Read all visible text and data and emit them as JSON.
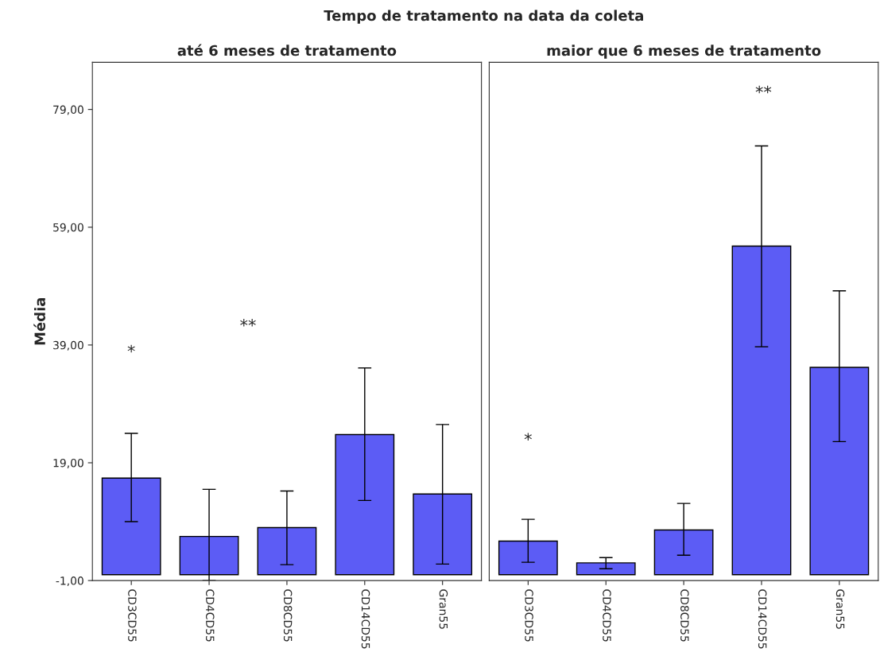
{
  "chart_data": [
    {
      "type": "bar",
      "title": "Tempo de tratamento na data da coleta",
      "subtitle": "até 6 meses de tratamento",
      "ylabel": "Média",
      "categories": [
        "CD3CD55",
        "CD4CD55",
        "CD8CD55",
        "CD14CD55",
        "Gran55"
      ],
      "values": [
        16.4,
        6.5,
        8.0,
        23.8,
        13.7
      ],
      "errors": [
        [
          9.0,
          24.0
        ],
        [
          -1.0,
          14.5
        ],
        [
          1.7,
          14.2
        ],
        [
          12.6,
          35.1
        ],
        [
          1.8,
          25.5
        ]
      ],
      "color": "#5c5cf5",
      "ylim": [
        -1,
        87
      ],
      "yticks": [
        {
          "value": -1,
          "label": "-1,00"
        },
        {
          "value": 19,
          "label": "19,00"
        },
        {
          "value": 39,
          "label": "39,00"
        },
        {
          "value": 59,
          "label": "59,00"
        },
        {
          "value": 79,
          "label": "79,00"
        }
      ],
      "annotations": [
        "*",
        "**"
      ]
    },
    {
      "type": "bar",
      "subtitle": "maior que 6 meses de tratamento",
      "categories": [
        "CD3CD55",
        "CD4CD55",
        "CD8CD55",
        "CD14CD55",
        "Gran55"
      ],
      "values": [
        5.7,
        2.0,
        7.6,
        55.8,
        35.2
      ],
      "errors": [
        [
          2.1,
          9.4
        ],
        [
          1.0,
          2.9
        ],
        [
          3.3,
          12.1
        ],
        [
          38.7,
          72.8
        ],
        [
          22.6,
          48.2
        ]
      ],
      "color": "#5c5cf5",
      "ylim": [
        -1,
        87
      ],
      "annotations": [
        "*",
        "**"
      ],
      "tick_labels": "x"
    }
  ]
}
